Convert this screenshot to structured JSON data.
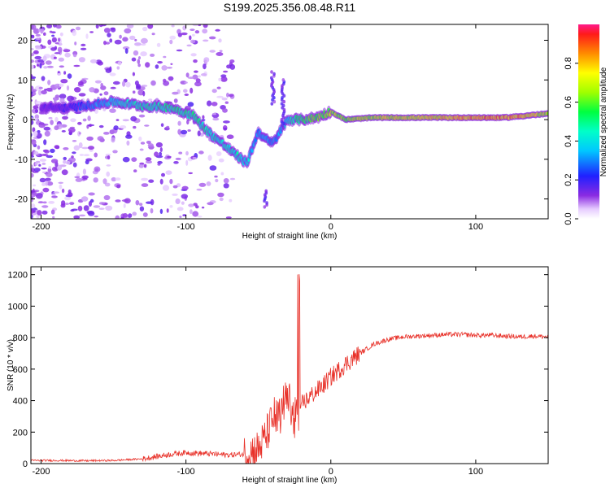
{
  "title": "S199.2025.356.08.48.R11",
  "chart_data": [
    {
      "type": "heatmap",
      "title": "S199.2025.356.08.48.R11",
      "xlabel": "Height of straight line (km)",
      "ylabel": "Frequency (Hz)",
      "xlim": [
        -207,
        150
      ],
      "ylim": [
        -25,
        24
      ],
      "xticks": [
        -200,
        -100,
        0,
        100
      ],
      "yticks": [
        -20,
        -10,
        0,
        10,
        20
      ],
      "colorbar": {
        "label": "Normalized spectral amplitude",
        "range": [
          0,
          1
        ],
        "ticks": [
          "0.0",
          "0.2",
          "0.4",
          "0.6",
          "0.8"
        ],
        "tick_values": [
          0.0,
          0.2,
          0.4,
          0.6,
          0.8
        ]
      },
      "tone_track": {
        "description_x_km": [
          -200,
          -180,
          -150,
          -130,
          -110,
          -95,
          -85,
          -75,
          -65,
          -58,
          -50,
          -45,
          -40,
          -30,
          -20,
          -10,
          0,
          10,
          30,
          60,
          90,
          120,
          150
        ],
        "freq_hz": [
          3,
          3,
          4.5,
          3.5,
          3,
          1,
          -3,
          -6,
          -9,
          -11,
          -3,
          -5,
          -6,
          0,
          0,
          0.5,
          2,
          0,
          0.5,
          0.5,
          0.5,
          0.5,
          1.5
        ],
        "amplitude": [
          0.15,
          0.2,
          0.4,
          0.45,
          0.5,
          0.5,
          0.45,
          0.45,
          0.45,
          0.4,
          0.3,
          0.35,
          0.3,
          0.4,
          0.55,
          0.6,
          0.65,
          0.65,
          0.7,
          0.7,
          0.8,
          0.85,
          0.7
        ]
      }
    },
    {
      "type": "line",
      "xlabel": "Height of straight line (km)",
      "ylabel": "SNR (10 * v/v)",
      "xlim": [
        -207,
        150
      ],
      "ylim": [
        0,
        1250
      ],
      "xticks": [
        -200,
        -100,
        0,
        100
      ],
      "yticks": [
        0,
        200,
        400,
        600,
        800,
        1000,
        1200
      ],
      "color": "#e8322a",
      "series": [
        {
          "name": "SNR",
          "x": [
            -207,
            -190,
            -170,
            -150,
            -130,
            -120,
            -110,
            -100,
            -90,
            -80,
            -70,
            -60,
            -50,
            -45,
            -40,
            -35,
            -30,
            -25,
            -20,
            -15,
            -10,
            -5,
            0,
            10,
            20,
            30,
            40,
            50,
            60,
            70,
            80,
            90,
            100,
            110,
            120,
            130,
            140,
            150
          ],
          "y": [
            20,
            20,
            18,
            20,
            30,
            45,
            60,
            70,
            65,
            60,
            55,
            60,
            90,
            170,
            280,
            400,
            500,
            330,
            380,
            420,
            460,
            500,
            550,
            630,
            700,
            760,
            790,
            805,
            810,
            815,
            820,
            820,
            815,
            815,
            810,
            805,
            810,
            805
          ]
        }
      ]
    }
  ],
  "colors": {
    "snr_line": "#e8322a",
    "axis": "#000000",
    "background": "#ffffff"
  }
}
